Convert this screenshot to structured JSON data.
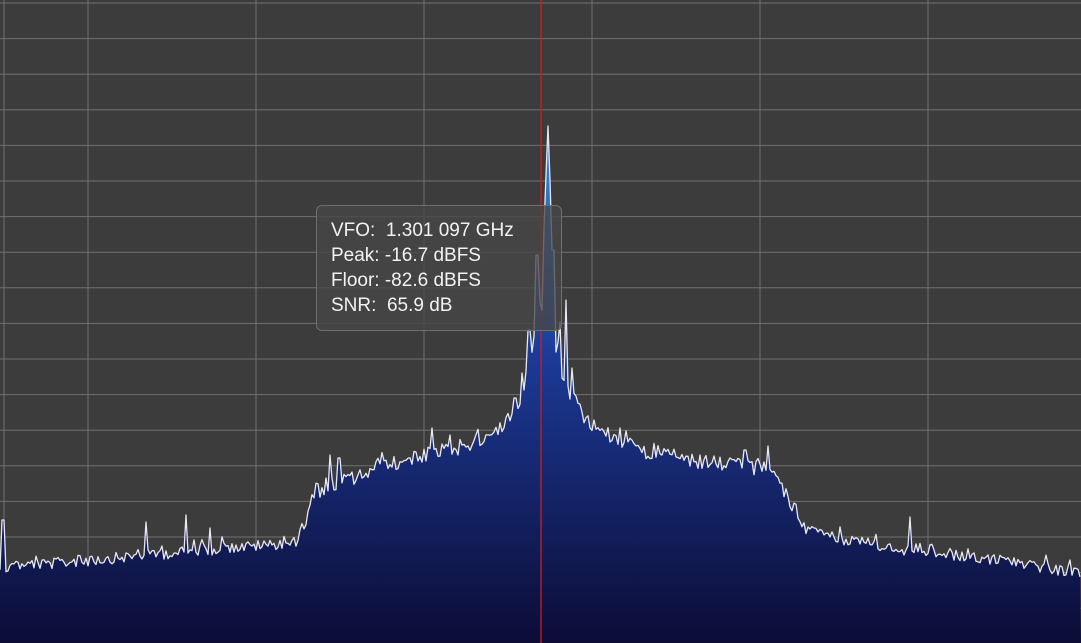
{
  "spectrum": {
    "colors": {
      "background": "#3c3c3c",
      "grid": "#707070",
      "trace": "#e8e8f4",
      "fill_top": "#3a8ee0",
      "fill_bottom": "#0c0c36",
      "vfo_marker": "#c82020"
    },
    "grid": true
  },
  "readout": {
    "vfo_label": "VFO:",
    "vfo_value": "1.301 097 GHz",
    "peak_label": "Peak:",
    "peak_value": "-16.7 dBFS",
    "floor_label": "Floor:",
    "floor_value": "-82.6 dBFS",
    "snr_label": "SNR:",
    "snr_value": "65.9 dB"
  }
}
